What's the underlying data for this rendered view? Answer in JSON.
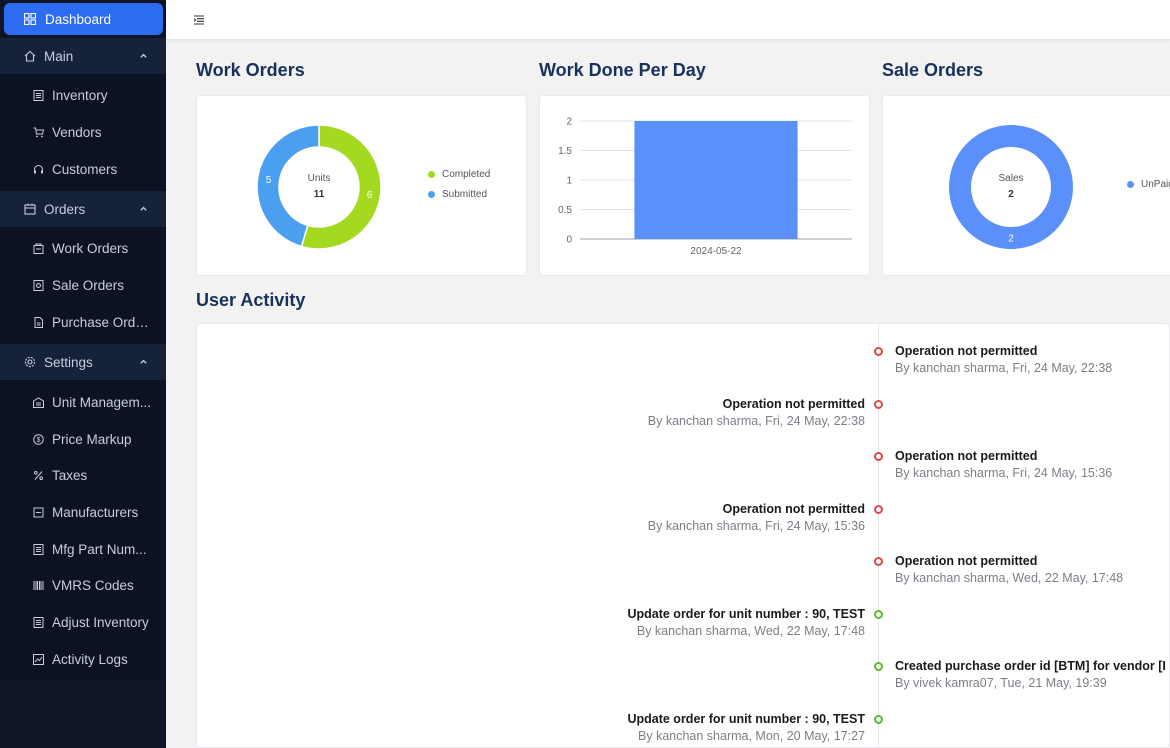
{
  "sidebar": {
    "dashboard": "Dashboard",
    "groups": {
      "main": "Main",
      "orders": "Orders",
      "settings": "Settings"
    },
    "items": {
      "inventory": "Inventory",
      "vendors": "Vendors",
      "customers": "Customers",
      "work_orders": "Work Orders",
      "sale_orders": "Sale Orders",
      "purchase_orders": "Purchase Orders",
      "unit_management": "Unit Managem...",
      "price_markup": "Price Markup",
      "taxes": "Taxes",
      "manufacturers": "Manufacturers",
      "mfg_part_numbers": "Mfg Part Num...",
      "vmrs_codes": "VMRS Codes",
      "adjust_inventory": "Adjust Inventory",
      "activity_logs": "Activity Logs"
    },
    "active_color": "#2d6cf0"
  },
  "sections": {
    "work_orders": "Work Orders",
    "work_done": "Work Done Per Day",
    "sale_orders": "Sale Orders",
    "user_activity": "User Activity"
  },
  "chart_data": [
    {
      "type": "pie",
      "title": "Work Orders",
      "center_label": "Units",
      "center_value": "11",
      "slices": [
        {
          "name": "Completed",
          "value": 6,
          "color": "#a3d91f"
        },
        {
          "name": "Submitted",
          "value": 5,
          "color": "#4b9ff0"
        }
      ],
      "legend": "right"
    },
    {
      "type": "bar",
      "title": "Work Done Per Day",
      "categories": [
        "2024-05-22"
      ],
      "values": [
        2
      ],
      "ylim": [
        0,
        2
      ],
      "yticks": [
        "0",
        "0.5",
        "1",
        "1.5",
        "2"
      ],
      "color": "#5b8ff9",
      "grid": true
    },
    {
      "type": "pie",
      "title": "Sale Orders",
      "center_label": "Sales",
      "center_value": "2",
      "slices": [
        {
          "name": "UnPaid",
          "value": 2,
          "color": "#5b8ff9"
        }
      ],
      "legend": "right"
    }
  ],
  "activity": [
    {
      "side": "right",
      "title": "Operation not permitted",
      "sub": "By kanchan sharma, Fri, 24 May, 22:38",
      "status": "error"
    },
    {
      "side": "left",
      "title": "Operation not permitted",
      "sub": "By kanchan sharma, Fri, 24 May, 22:38",
      "status": "error"
    },
    {
      "side": "right",
      "title": "Operation not permitted",
      "sub": "By kanchan sharma, Fri, 24 May, 15:36",
      "status": "error"
    },
    {
      "side": "left",
      "title": "Operation not permitted",
      "sub": "By kanchan sharma, Fri, 24 May, 15:36",
      "status": "error"
    },
    {
      "side": "right",
      "title": "Operation not permitted",
      "sub": "By kanchan sharma, Wed, 22 May, 17:48",
      "status": "error"
    },
    {
      "side": "left",
      "title": "Update order for unit number : 90, TEST",
      "sub": "By kanchan sharma, Wed, 22 May, 17:48",
      "status": "success"
    },
    {
      "side": "right",
      "title": "Created purchase order id [BTM] for vendor [I",
      "sub": "By vivek kamra07, Tue, 21 May, 19:39",
      "status": "success"
    },
    {
      "side": "left",
      "title": "Update order for unit number : 90, TEST",
      "sub": "By kanchan sharma, Mon, 20 May, 17:27",
      "status": "success"
    }
  ],
  "colors": {
    "error": "#e0474c",
    "success": "#5cb82e"
  }
}
